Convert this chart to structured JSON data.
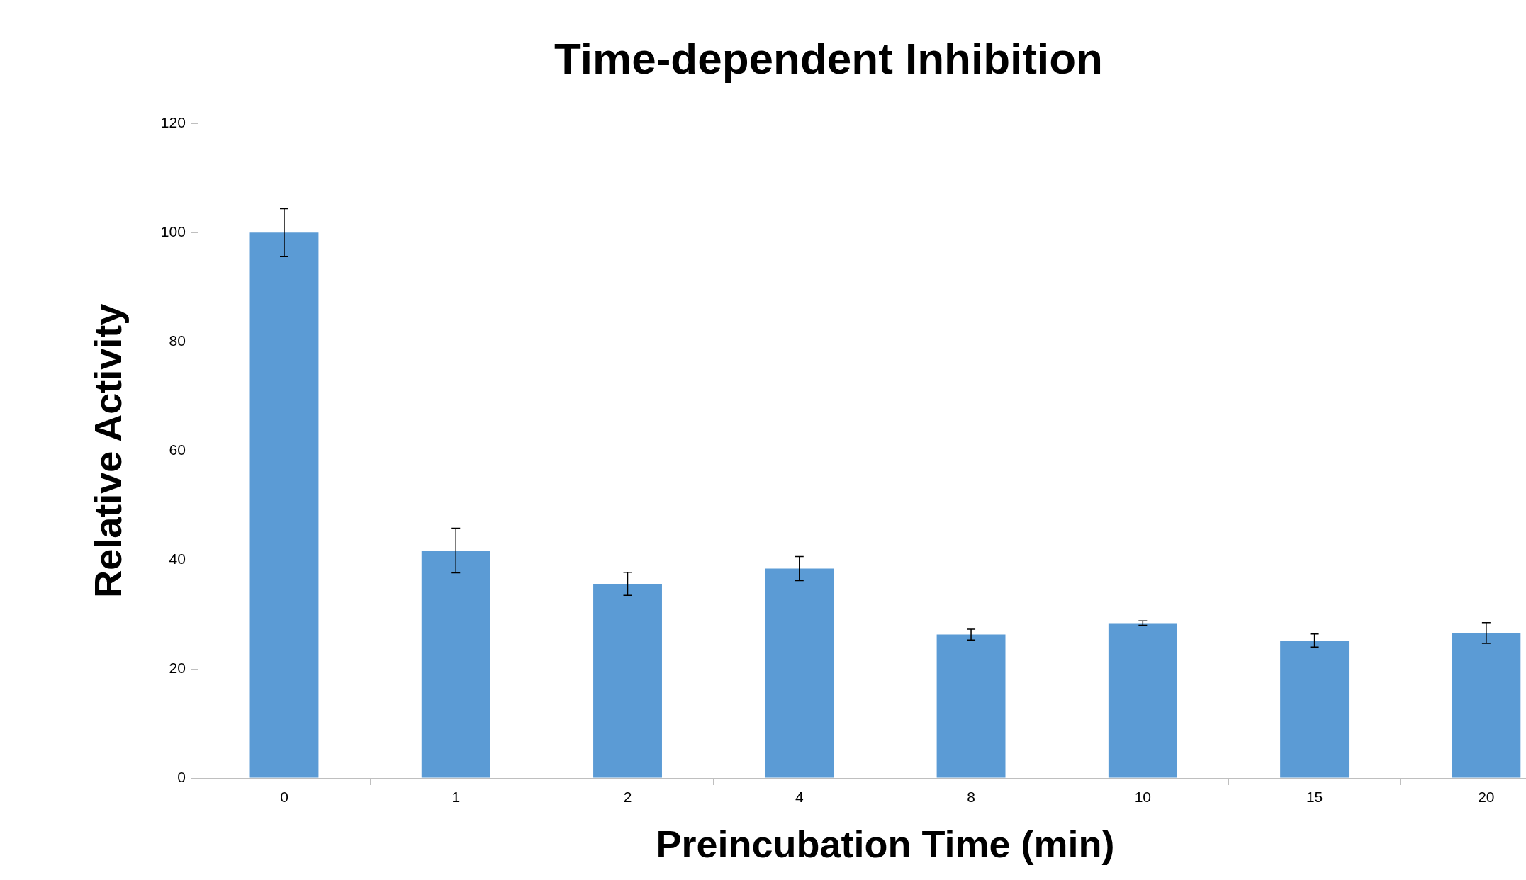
{
  "chart_data": {
    "type": "bar",
    "title": "Time-dependent Inhibition",
    "xlabel": "Preincubation Time (min)",
    "ylabel": "Relative Activity",
    "categories": [
      "0",
      "1",
      "2",
      "4",
      "8",
      "10",
      "15",
      "20"
    ],
    "values": [
      100,
      41.7,
      35.6,
      38.4,
      26.3,
      28.4,
      25.2,
      26.6
    ],
    "errors": [
      4.4,
      4.1,
      2.1,
      2.2,
      1.0,
      0.4,
      1.2,
      1.9
    ],
    "color": "#5b9bd5",
    "ylim": [
      0,
      120
    ],
    "yticks": [
      0,
      20,
      40,
      60,
      80,
      100,
      120
    ],
    "grid": false,
    "legend": false
  }
}
